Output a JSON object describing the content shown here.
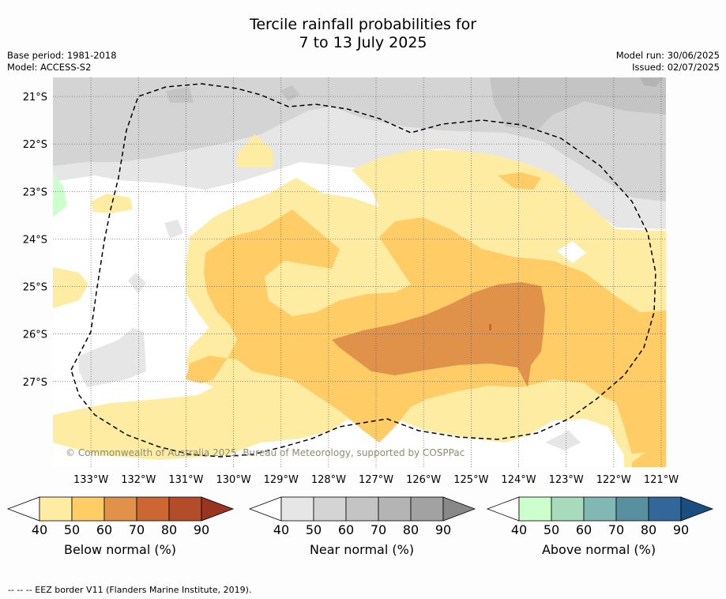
{
  "header": {
    "title_line1": "Tercile rainfall probabilities for",
    "title_line2": "7 to 13 July 2025",
    "base_period": "Base period: 1981-2018",
    "model": "Model: ACCESS-S2",
    "model_run": "Model run: 30/06/2025",
    "issued": "Issued: 02/07/2025"
  },
  "map": {
    "copyright": "© Commonwealth of Australia 2025, Bureau of Meteorology, supported by COSPPac",
    "lon_ticks": [
      "133°W",
      "132°W",
      "131°W",
      "130°W",
      "129°W",
      "128°W",
      "127°W",
      "126°W",
      "125°W",
      "124°W",
      "123°W",
      "122°W",
      "121°W"
    ],
    "lat_ticks": [
      "21°S",
      "22°S",
      "23°S",
      "24°S",
      "25°S",
      "26°S",
      "27°S"
    ],
    "lon_range": [
      -133.8,
      -120.9
    ],
    "lat_range": [
      -20.6,
      -28.8
    ],
    "grid": true
  },
  "colors": {
    "below": [
      "#ffeca3",
      "#ffcc66",
      "#e0924a",
      "#cc6633",
      "#b34d29",
      "#993322"
    ],
    "near": [
      "#e6e6e6",
      "#d4d4d4",
      "#c4c4c4",
      "#b4b4b4",
      "#a2a2a2",
      "#888888"
    ],
    "above": [
      "#ccffcc",
      "#a8dbbb",
      "#82b8b4",
      "#5990a0",
      "#336699",
      "#1a4d80"
    ]
  },
  "colorbars": [
    {
      "key": "below",
      "label": "Below normal (%)",
      "ticks": [
        "40",
        "50",
        "60",
        "70",
        "80",
        "90"
      ]
    },
    {
      "key": "near",
      "label": "Near normal (%)",
      "ticks": [
        "40",
        "50",
        "60",
        "70",
        "80",
        "90"
      ]
    },
    {
      "key": "above",
      "label": "Above normal (%)",
      "ticks": [
        "40",
        "50",
        "60",
        "70",
        "80",
        "90"
      ]
    }
  ],
  "footnote": "--  --  -- EEZ border V11 (Flanders Marine Institute, 2019)."
}
